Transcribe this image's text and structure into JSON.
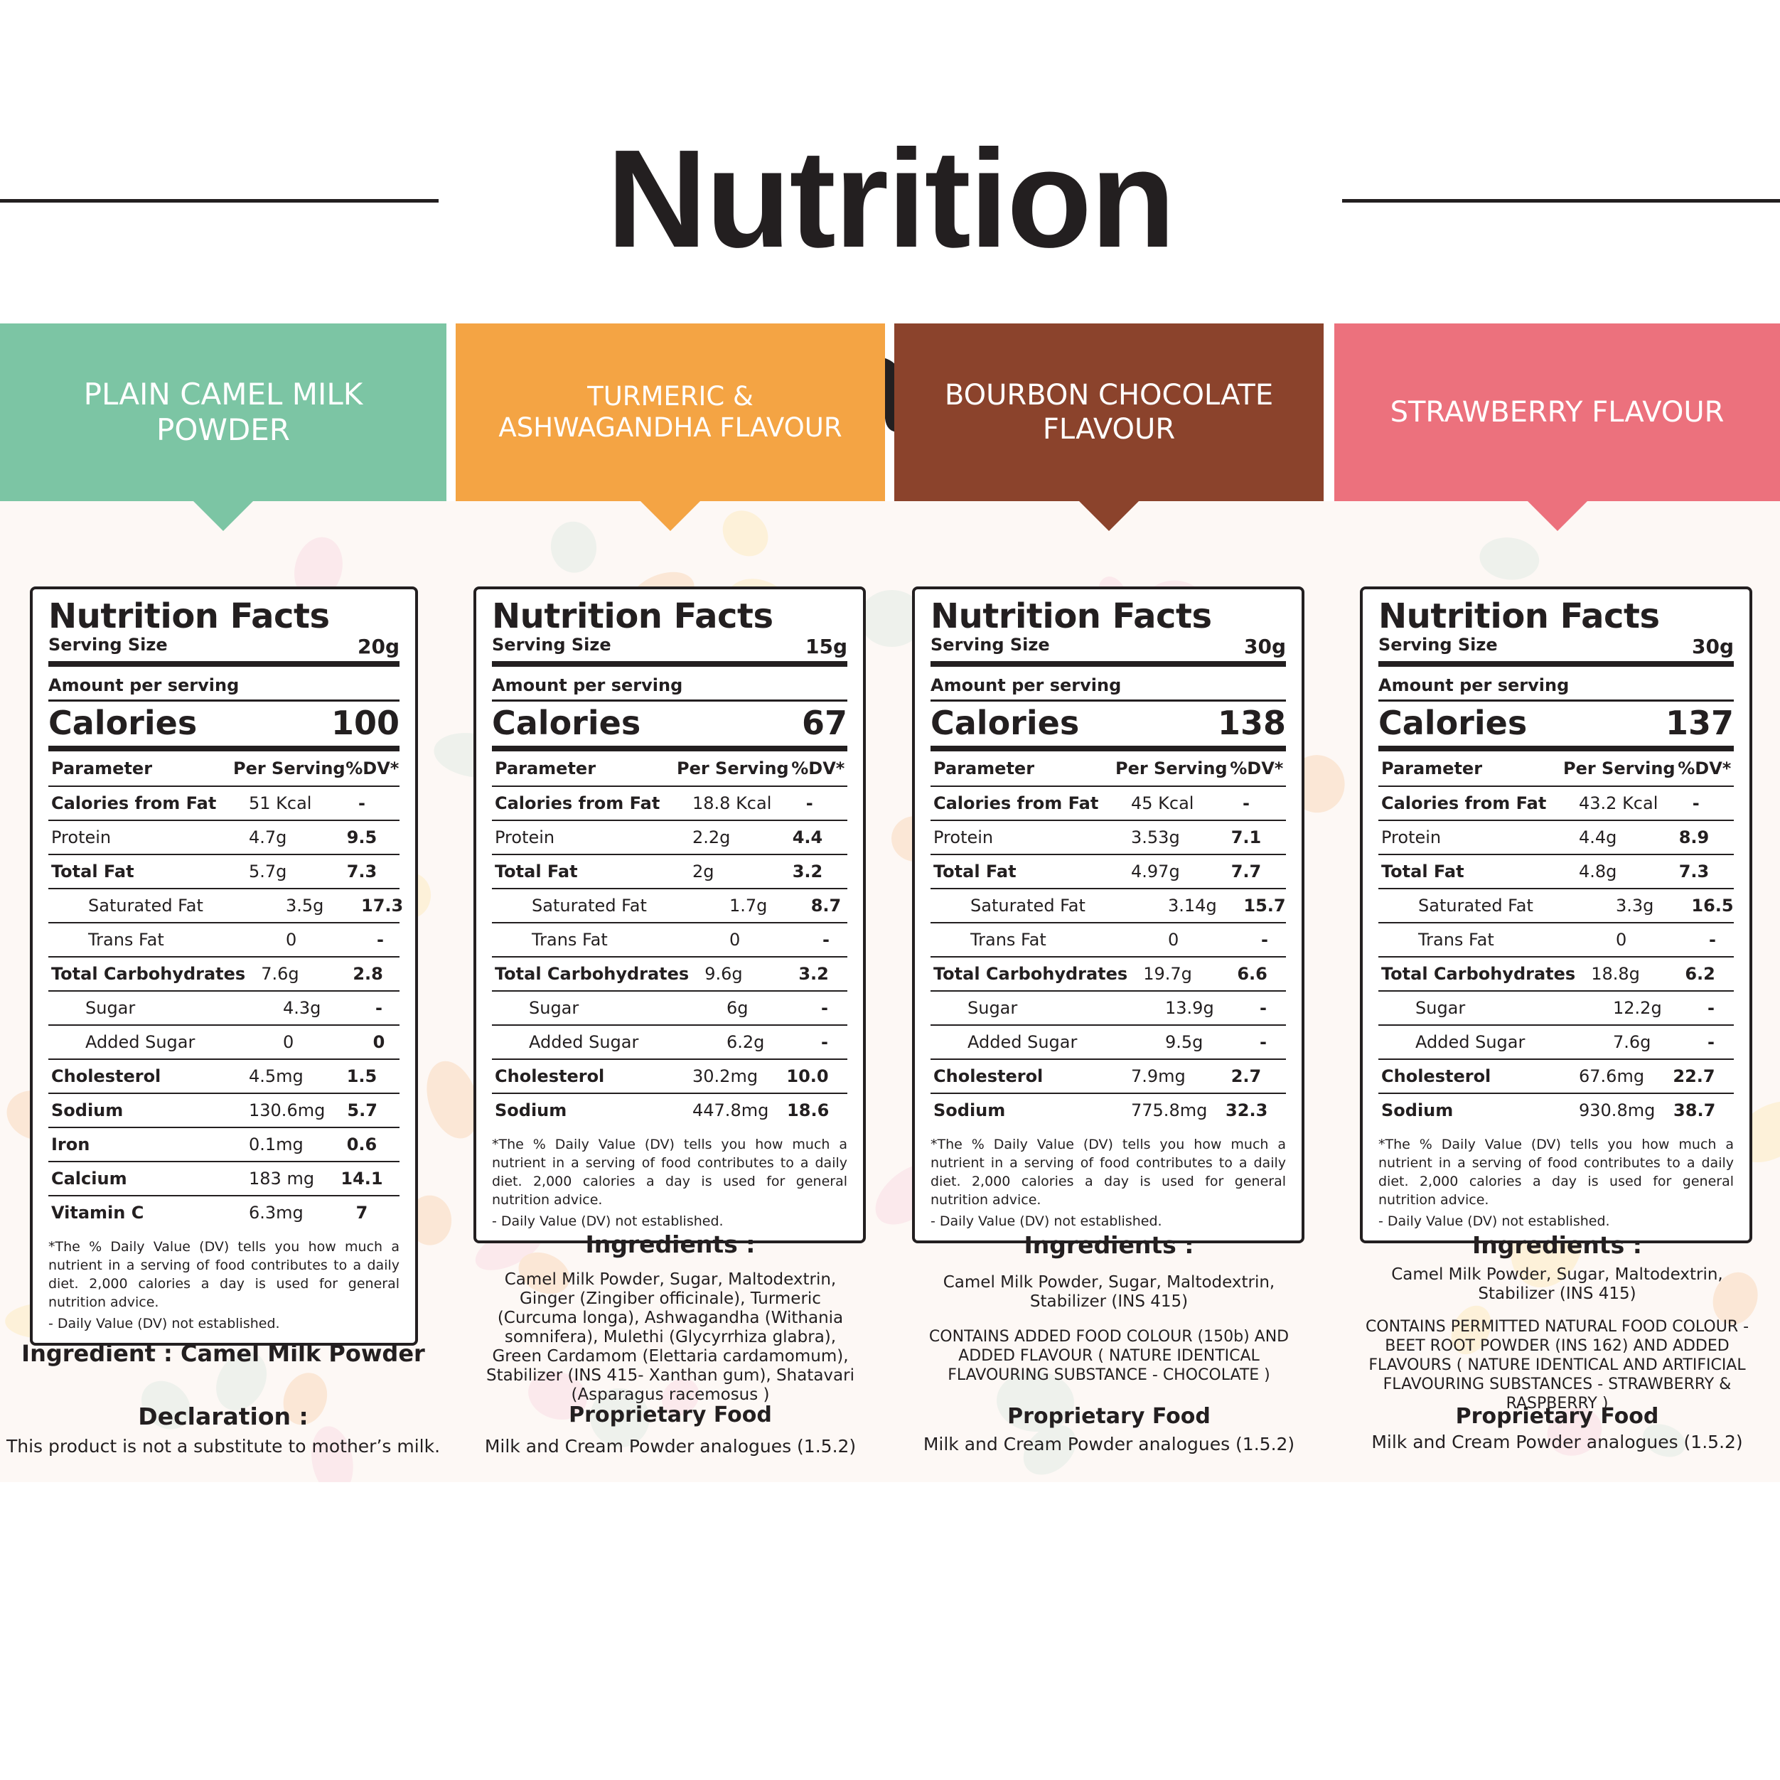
{
  "title": "Nutrition Card",
  "colors": {
    "plain": "#7cc5a4",
    "turmeric": "#f4a444",
    "chocolate": "#8b432c",
    "strawberry": "#ec717d",
    "text": "#231f20"
  },
  "common": {
    "facts_title": "Nutrition Facts",
    "serving_size_label": "Serving Size",
    "amount_label": "Amount per serving",
    "calories_label": "Calories",
    "col_param": "Parameter",
    "col_per": "Per Serving",
    "col_dv": "%DV*",
    "footnote": "*The % Daily Value (DV) tells you how much a nutrient in a serving of food contributes to a daily diet. 2,000 calories a day is used for general nutrition advice.",
    "footnote2": "- Daily Value (DV) not established.",
    "ingredients_label": "Ingredients :",
    "proprietary_label": "Proprietary Food",
    "proprietary_text": "Milk and Cream Powder analogues (1.5.2)"
  },
  "products": [
    {
      "name": "PLAIN CAMEL MILK POWDER",
      "serving_size": "20g",
      "calories": "100",
      "rows": [
        [
          "Calories from Fat",
          "51  Kcal",
          "-"
        ],
        [
          "Protein",
          "4.7g",
          "9.5"
        ],
        [
          "Total Fat",
          "5.7g",
          "7.3"
        ],
        [
          "Saturated Fat",
          "3.5g",
          "17.3"
        ],
        [
          "Trans Fat",
          "0",
          "-"
        ],
        [
          "Total Carbohydrates",
          "7.6g",
          "2.8"
        ],
        [
          "Sugar",
          "4.3g",
          "-"
        ],
        [
          "Added Sugar",
          "0",
          "0"
        ],
        [
          "Cholesterol",
          "4.5mg",
          "1.5"
        ],
        [
          "Sodium",
          "130.6mg",
          "5.7"
        ],
        [
          "Iron",
          "0.1mg",
          "0.6"
        ],
        [
          "Calcium",
          "183 mg",
          "14.1"
        ],
        [
          "Vitamin C",
          "6.3mg",
          "7"
        ]
      ],
      "ingredient_line": "Ingredient : Camel Milk Powder",
      "declaration_label": "Declaration :",
      "declaration_text": "This product is not a substitute to mother’s milk."
    },
    {
      "name": "TURMERIC & ASHWAGANDHA FLAVOUR",
      "serving_size": "15g",
      "calories": "67",
      "rows": [
        [
          "Calories from Fat",
          "18.8 Kcal",
          "-"
        ],
        [
          "Protein",
          "2.2g",
          "4.4"
        ],
        [
          "Total Fat",
          "2g",
          "3.2"
        ],
        [
          "Saturated Fat",
          "1.7g",
          "8.7"
        ],
        [
          "Trans Fat",
          "0",
          "-"
        ],
        [
          "Total Carbohydrates",
          "9.6g",
          "3.2"
        ],
        [
          "Sugar",
          "6g",
          "-"
        ],
        [
          "Added Sugar",
          "6.2g",
          "-"
        ],
        [
          "Cholesterol",
          "30.2mg",
          "10.0"
        ],
        [
          "Sodium",
          "447.8mg",
          "18.6"
        ]
      ],
      "ingredients": "Camel Milk Powder, Sugar, Maltodextrin, Ginger (Zingiber officinale), Turmeric (Curcuma longa), Ashwagandha (Withania somnifera), Mulethi (Glycyrrhiza glabra), Green Cardamom (Elettaria cardamomum), Stabilizer (INS 415- Xanthan gum), Shatavari (Asparagus racemosus )"
    },
    {
      "name": "BOURBON CHOCOLATE FLAVOUR",
      "serving_size": "30g",
      "calories": "138",
      "rows": [
        [
          "Calories from Fat",
          "45 Kcal",
          "-"
        ],
        [
          "Protein",
          "3.53g",
          "7.1"
        ],
        [
          "Total Fat",
          "4.97g",
          "7.7"
        ],
        [
          "Saturated Fat",
          "3.14g",
          "15.7"
        ],
        [
          "Trans Fat",
          "0",
          "-"
        ],
        [
          "Total Carbohydrates",
          "19.7g",
          "6.6"
        ],
        [
          "Sugar",
          "13.9g",
          "-"
        ],
        [
          "Added Sugar",
          "9.5g",
          "-"
        ],
        [
          "Cholesterol",
          "7.9mg",
          "2.7"
        ],
        [
          "Sodium",
          "775.8mg",
          "32.3"
        ]
      ],
      "ingredients": "Camel Milk Powder, Sugar, Maltodextrin, Stabilizer (INS 415)",
      "contains": "CONTAINS ADDED FOOD COLOUR (150b) AND ADDED FLAVOUR ( NATURE IDENTICAL FLAVOURING SUBSTANCE - CHOCOLATE )"
    },
    {
      "name": "STRAWBERRY FLAVOUR",
      "serving_size": "30g",
      "calories": "137",
      "rows": [
        [
          "Calories from Fat",
          "43.2 Kcal",
          "-"
        ],
        [
          "Protein",
          "4.4g",
          "8.9"
        ],
        [
          "Total Fat",
          "4.8g",
          "7.3"
        ],
        [
          "Saturated Fat",
          "3.3g",
          "16.5"
        ],
        [
          "Trans Fat",
          "0",
          "-"
        ],
        [
          "Total Carbohydrates",
          "18.8g",
          "6.2"
        ],
        [
          "Sugar",
          "12.2g",
          "-"
        ],
        [
          "Added Sugar",
          "7.6g",
          "-"
        ],
        [
          "Cholesterol",
          "67.6mg",
          "22.7"
        ],
        [
          "Sodium",
          "930.8mg",
          "38.7"
        ]
      ],
      "ingredients": "Camel Milk Powder, Sugar, Maltodextrin, Stabilizer (INS 415)",
      "contains": "CONTAINS PERMITTED NATURAL FOOD COLOUR - BEET ROOT POWDER (INS 162) AND ADDED FLAVOURS ( NATURE IDENTICAL AND ARTIFICIAL FLAVOURING SUBSTANCES - STRAWBERRY & RASPBERRY )"
    }
  ]
}
